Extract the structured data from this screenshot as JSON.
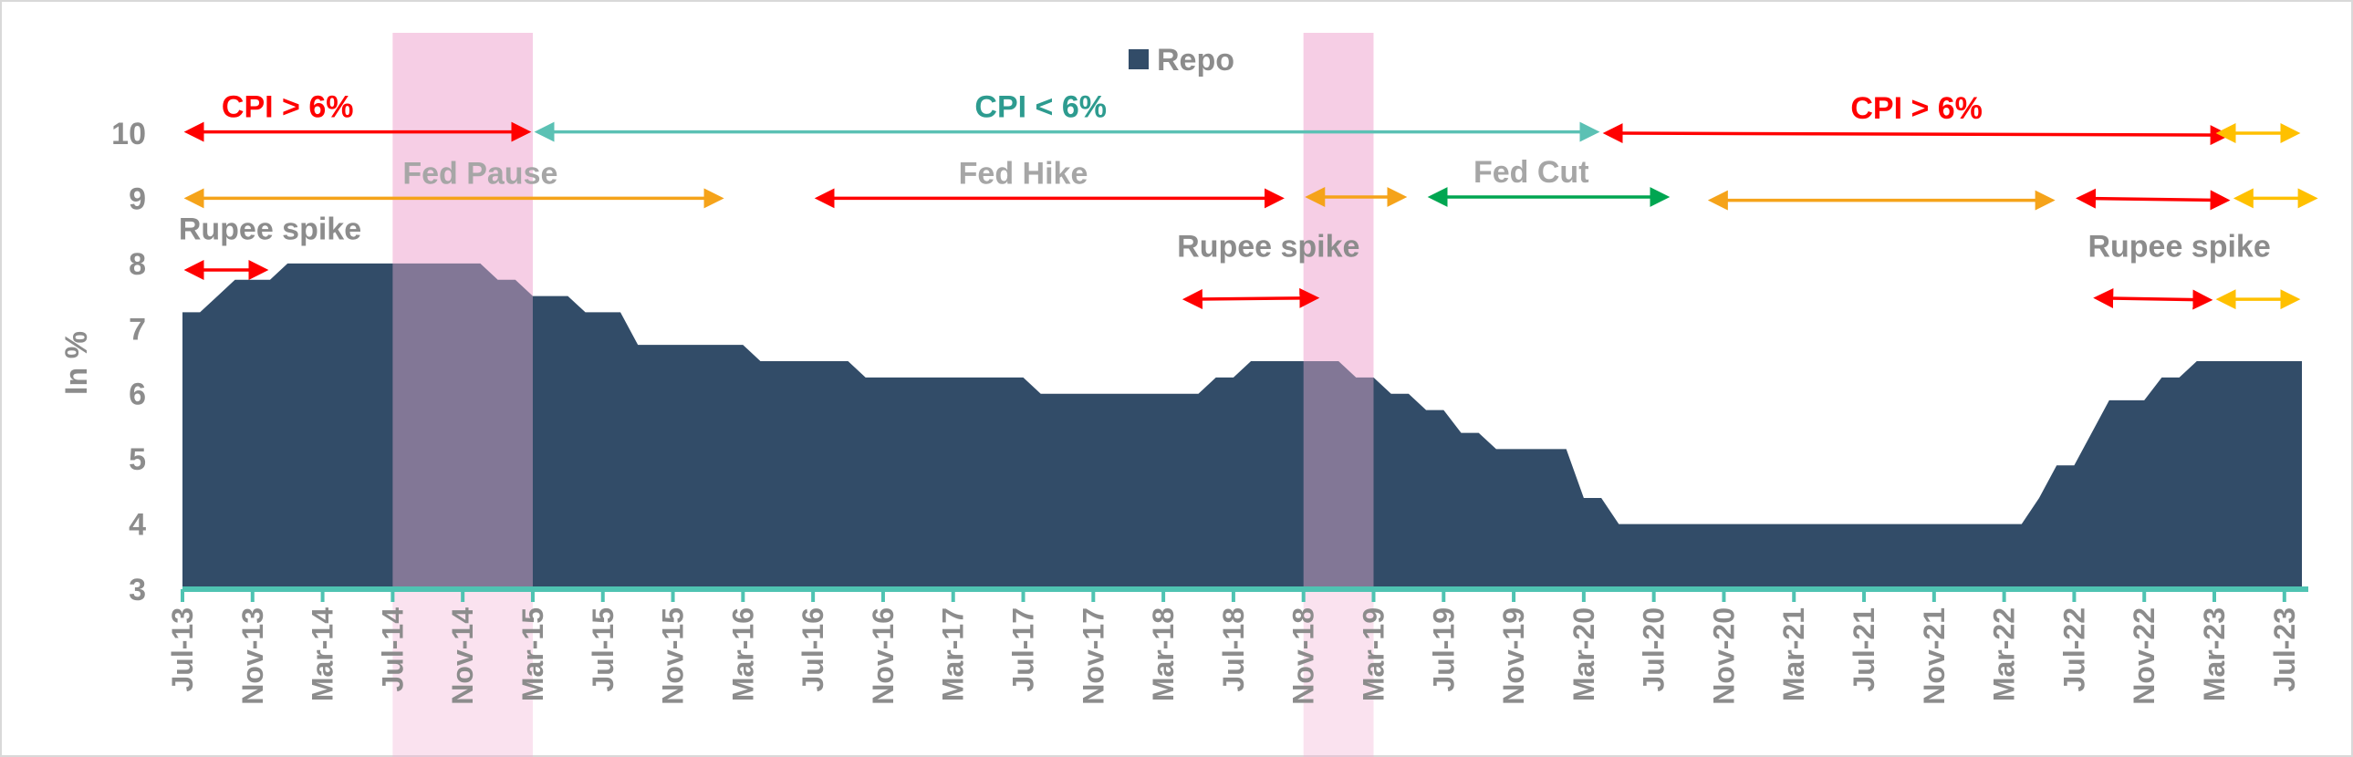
{
  "chart_data": {
    "type": "area",
    "title": "",
    "xlabel": "",
    "ylabel": "In %",
    "ylim": [
      3,
      10
    ],
    "yticks": [
      "3",
      "4",
      "5",
      "6",
      "7",
      "8",
      "9",
      "10"
    ],
    "xlim": [
      "Jul-13",
      "Aug-23"
    ],
    "grid": false,
    "legend": {
      "position": "top-center",
      "entries": [
        "Repo"
      ]
    },
    "xtick_labels": [
      "Jul-13",
      "Nov-13",
      "Mar-14",
      "Jul-14",
      "Nov-14",
      "Mar-15",
      "Jul-15",
      "Nov-15",
      "Mar-16",
      "Jul-16",
      "Nov-16",
      "Mar-17",
      "Jul-17",
      "Nov-17",
      "Mar-18",
      "Jul-18",
      "Nov-18",
      "Mar-19",
      "Jul-19",
      "Nov-19",
      "Mar-20",
      "Jul-20",
      "Nov-20",
      "Mar-21",
      "Jul-21",
      "Nov-21",
      "Mar-22",
      "Jul-22",
      "Nov-22",
      "Mar-23",
      "Jul-23"
    ],
    "series": [
      {
        "name": "Repo",
        "color": "#324c68",
        "points": [
          [
            "Jul-13",
            7.25
          ],
          [
            "Aug-13",
            7.25
          ],
          [
            "Sep-13",
            7.5
          ],
          [
            "Oct-13",
            7.75
          ],
          [
            "Nov-13",
            7.75
          ],
          [
            "Dec-13",
            7.75
          ],
          [
            "Jan-14",
            8.0
          ],
          [
            "Feb-14",
            8.0
          ],
          [
            "Mar-14",
            8.0
          ],
          [
            "Jun-14",
            8.0
          ],
          [
            "Dec-14",
            8.0
          ],
          [
            "Jan-15",
            7.75
          ],
          [
            "Feb-15",
            7.75
          ],
          [
            "Mar-15",
            7.5
          ],
          [
            "Apr-15",
            7.5
          ],
          [
            "May-15",
            7.5
          ],
          [
            "Jun-15",
            7.25
          ],
          [
            "Aug-15",
            7.25
          ],
          [
            "Sep-15",
            6.75
          ],
          [
            "Mar-16",
            6.75
          ],
          [
            "Apr-16",
            6.5
          ],
          [
            "Sep-16",
            6.5
          ],
          [
            "Oct-16",
            6.25
          ],
          [
            "Jul-17",
            6.25
          ],
          [
            "Aug-17",
            6.0
          ],
          [
            "May-18",
            6.0
          ],
          [
            "Jun-18",
            6.25
          ],
          [
            "Jul-18",
            6.25
          ],
          [
            "Aug-18",
            6.5
          ],
          [
            "Jan-19",
            6.5
          ],
          [
            "Feb-19",
            6.25
          ],
          [
            "Mar-19",
            6.25
          ],
          [
            "Apr-19",
            6.0
          ],
          [
            "May-19",
            6.0
          ],
          [
            "Jun-19",
            5.75
          ],
          [
            "Jul-19",
            5.75
          ],
          [
            "Aug-19",
            5.4
          ],
          [
            "Sep-19",
            5.4
          ],
          [
            "Oct-19",
            5.15
          ],
          [
            "Feb-20",
            5.15
          ],
          [
            "Mar-20",
            4.4
          ],
          [
            "Apr-20",
            4.4
          ],
          [
            "May-20",
            4.0
          ],
          [
            "Apr-22",
            4.0
          ],
          [
            "May-22",
            4.4
          ],
          [
            "Jun-22",
            4.9
          ],
          [
            "Jul-22",
            4.9
          ],
          [
            "Aug-22",
            5.4
          ],
          [
            "Sep-22",
            5.9
          ],
          [
            "Nov-22",
            5.9
          ],
          [
            "Dec-22",
            6.25
          ],
          [
            "Jan-23",
            6.25
          ],
          [
            "Feb-23",
            6.5
          ],
          [
            "Aug-23",
            6.5
          ]
        ]
      }
    ],
    "shaded_regions": [
      {
        "from": "Jul-14",
        "to": "Mar-15",
        "color": "#f1b3d6"
      },
      {
        "from": "Nov-18",
        "to": "Mar-19",
        "color": "#f1b3d6"
      }
    ],
    "annotations": {
      "cpi": [
        {
          "text": "CPI > 6%",
          "from": "Jul-13",
          "to": "Mar-15",
          "y": 10.02,
          "text_at": "Jan-14",
          "color": "#ff0000"
        },
        {
          "text": "CPI < 6%",
          "from": "Mar-15",
          "to": "Apr-20",
          "y": 10.02,
          "text_at": "Aug-17",
          "color": "#2d9b8f",
          "line_color": "#5bc1b4"
        },
        {
          "text": "CPI > 6%",
          "from": "Apr-20",
          "to": "Apr-23",
          "y": 10.0,
          "text_at": "Oct-21",
          "color": "#ff0000",
          "y2": 9.97
        },
        {
          "text": "",
          "from": "Mar-23",
          "to": "Aug-23",
          "y": 10.0,
          "color": "#ffc000"
        }
      ],
      "fed": [
        {
          "text": "Fed Pause",
          "from": "Jul-13",
          "to": "Feb-16",
          "y": 9.0,
          "text_at": "Dec-14",
          "color": "#f5a31a",
          "text_color": "#a6a6a6"
        },
        {
          "text": "Fed Hike",
          "from": "Jul-16",
          "to": "Oct-18",
          "y": 9.0,
          "text_at": "Jul-17",
          "color": "#ff0000",
          "text_color": "#a6a6a6"
        },
        {
          "text": "",
          "from": "Nov-18",
          "to": "May-19",
          "y": 9.02,
          "color": "#f5a31a"
        },
        {
          "text": "Fed Cut",
          "from": "Jun-19",
          "to": "Aug-20",
          "y": 9.02,
          "text_at": "Dec-19",
          "color": "#00a651",
          "text_color": "#a6a6a6"
        },
        {
          "text": "",
          "from": "Oct-20",
          "to": "Jun-22",
          "y": 8.97,
          "color": "#f5a31a"
        },
        {
          "text": "",
          "from": "Jul-22",
          "to": "Apr-23",
          "y": 9.0,
          "color": "#ff0000",
          "y2": 8.97
        },
        {
          "text": "",
          "from": "Apr-23",
          "to": "Sep-23",
          "y": 9.0,
          "color": "#ffc000"
        }
      ],
      "rupee": [
        {
          "text": "Rupee spike",
          "from": "Jul-13",
          "to": "Dec-13",
          "y": 7.9,
          "text_at": "Dec-13",
          "text_y": 8.37,
          "color": "#ff0000",
          "text_color": "#8c8c8c"
        },
        {
          "text": "Rupee spike",
          "from": "Apr-18",
          "to": "Dec-18",
          "y": 7.45,
          "y2": 7.47,
          "text_at": "Sep-18",
          "text_y": 8.1,
          "color": "#ff0000",
          "text_color": "#8c8c8c"
        },
        {
          "text": "Rupee spike",
          "from": "Aug-22",
          "to": "Mar-23",
          "y": 7.47,
          "y2": 7.44,
          "text_at": "Jan-23",
          "text_y": 8.1,
          "color": "#ff0000",
          "text_color": "#8c8c8c"
        },
        {
          "text": "",
          "from": "Mar-23",
          "to": "Aug-23",
          "y": 7.45,
          "color": "#ffc000"
        }
      ]
    },
    "axis_color": "#4fc3b2"
  }
}
